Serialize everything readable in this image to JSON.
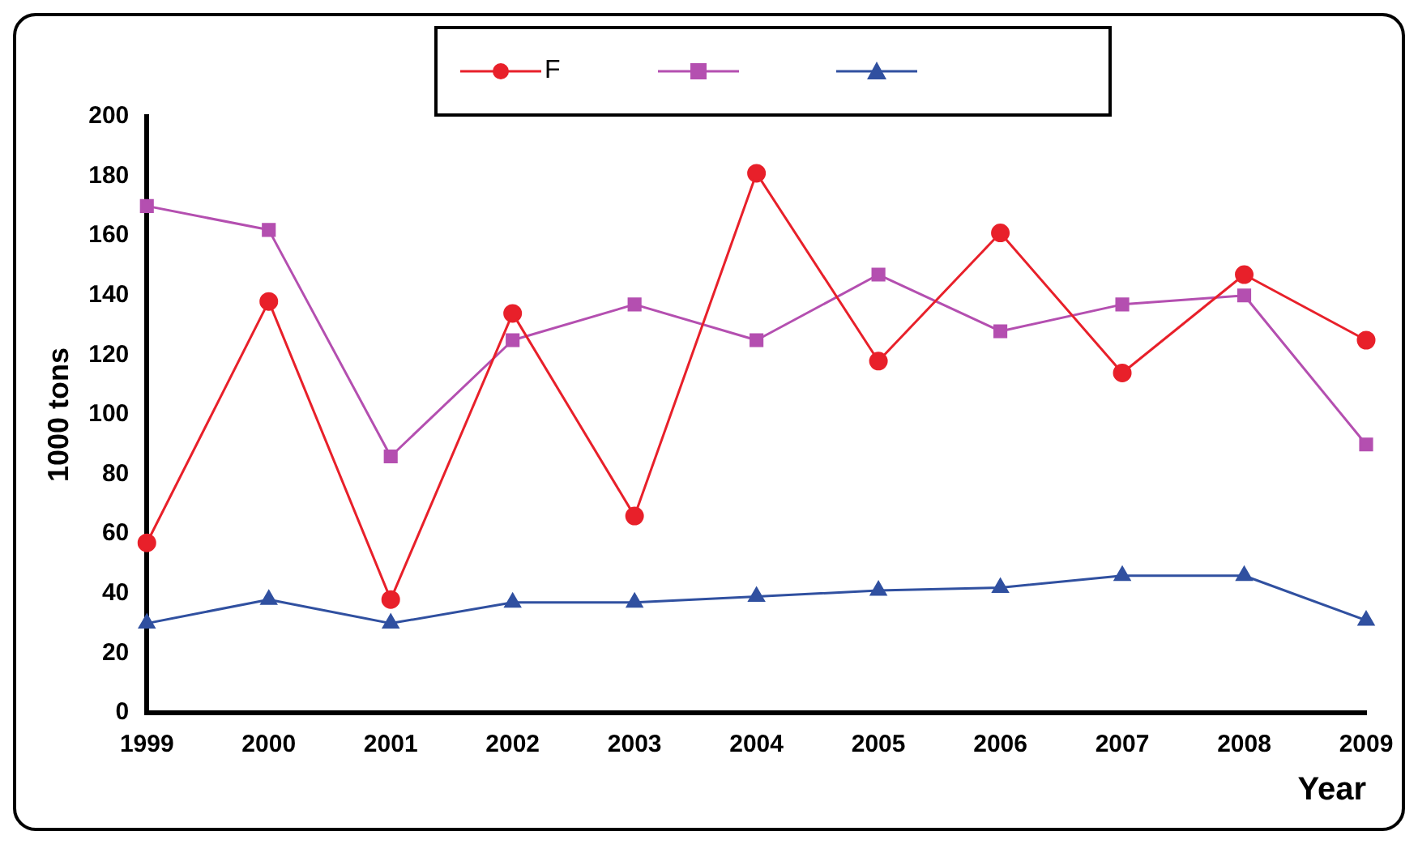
{
  "chart_data": {
    "type": "line",
    "xlabel": "Year",
    "ylabel": "1000 tons",
    "categories": [
      "1999",
      "2000",
      "2001",
      "2002",
      "2003",
      "2004",
      "2005",
      "2006",
      "2007",
      "2008",
      "2009"
    ],
    "series": [
      {
        "name": "F",
        "color": "#e8202a",
        "marker": "circle",
        "values": [
          57,
          138,
          38,
          134,
          66,
          181,
          118,
          161,
          114,
          147,
          125
        ]
      },
      {
        "color": "#b44fb0",
        "marker": "square",
        "values": [
          170,
          162,
          86,
          125,
          137,
          125,
          147,
          128,
          137,
          140,
          90
        ]
      },
      {
        "color": "#3050a0",
        "marker": "triangle",
        "values": [
          30,
          38,
          30,
          37,
          37,
          39,
          41,
          42,
          46,
          46,
          31
        ]
      }
    ],
    "ylim": [
      0,
      200
    ],
    "yticks": [
      0,
      20,
      40,
      60,
      80,
      100,
      120,
      140,
      160,
      180,
      200
    ],
    "grid": false,
    "legend": "top",
    "line_style": "solid"
  }
}
